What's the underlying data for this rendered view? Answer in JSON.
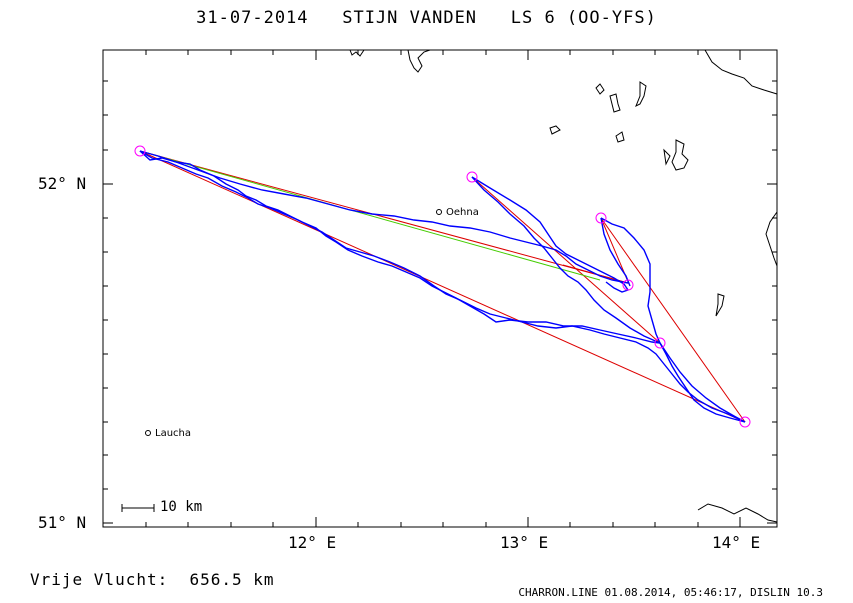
{
  "title": "31-07-2014   STIJN VANDEN   LS 6 (OO-YFS)",
  "footer_left": "Vrije Vlucht:  656.5 km",
  "footer_right": "CHARRON.LINE 01.08.2014, 05:46:17, DISLIN 10.3",
  "scale_bar_label": "10 km",
  "axes": {
    "lat_ticks": [
      "52° N",
      "51° N"
    ],
    "lon_ticks": [
      "12° E",
      "13° E",
      "14° E"
    ],
    "lon_range": [
      11.0,
      14.2
    ],
    "lat_range": [
      50.98,
      52.4
    ]
  },
  "places": [
    {
      "name": "Oehna",
      "lon": 12.58,
      "lat": 51.92
    },
    {
      "name": "Laucha",
      "lon": 11.15,
      "lat": 51.27
    }
  ],
  "turnpoints": [
    {
      "lon": 11.17,
      "lat": 52.1
    },
    {
      "lon": 12.73,
      "lat": 52.02
    },
    {
      "lon": 13.34,
      "lat": 51.9
    },
    {
      "lon": 13.48,
      "lat": 51.69
    },
    {
      "lon": 13.61,
      "lat": 51.54
    },
    {
      "lon": 14.07,
      "lat": 51.3
    }
  ],
  "colors": {
    "track": "#0000ff",
    "task_line": "#dd0000",
    "final_glide": "#44cc00",
    "turnpoint": "#ff00ff",
    "coast": "#000000"
  }
}
